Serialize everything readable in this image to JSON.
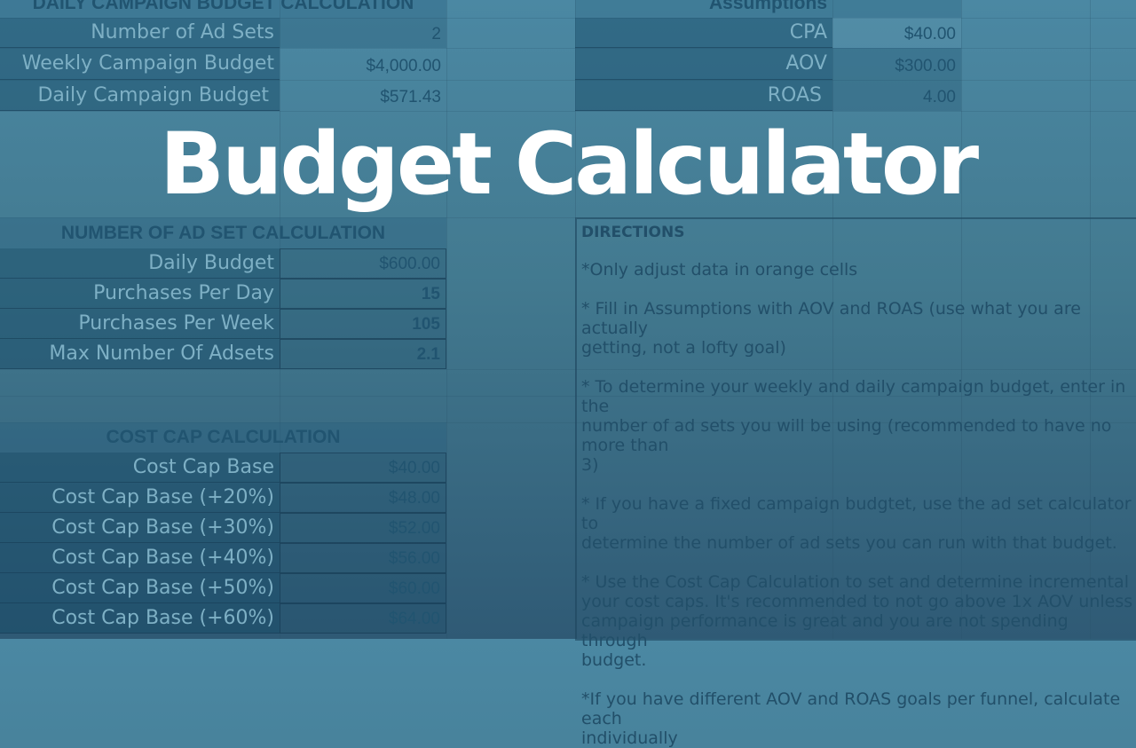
{
  "title_overlay": {
    "line1": "Budget",
    "line2": "Calculator"
  },
  "daily_campaign": {
    "header": "DAILY CAMPAIGN BUDGET CALCULATION",
    "rows": [
      {
        "label": "Number of Ad Sets",
        "value": "2"
      },
      {
        "label": "Weekly Campaign Budget",
        "value": "$4,000.00"
      },
      {
        "label": "Daily Campaign Budget",
        "value": "$571.43"
      }
    ]
  },
  "assumptions": {
    "header": "Assumptions",
    "rows": [
      {
        "label": "CPA",
        "value": "$40.00"
      },
      {
        "label": "AOV",
        "value": "$300.00"
      },
      {
        "label": "ROAS",
        "value": "4.00"
      }
    ]
  },
  "ad_set_calc": {
    "header": "NUMBER OF AD SET CALCULATION",
    "rows": [
      {
        "label": "Daily Budget",
        "value": "$600.00"
      },
      {
        "label": "Purchases Per Day",
        "value": "15"
      },
      {
        "label": "Purchases Per Week",
        "value": "105"
      },
      {
        "label": "Max Number Of Adsets",
        "value": "2.1"
      }
    ]
  },
  "cost_cap": {
    "header": "COST CAP CALCULATION",
    "rows": [
      {
        "label": "Cost Cap Base",
        "value": "$40.00"
      },
      {
        "label": "Cost Cap Base (+20%)",
        "value": "$48.00"
      },
      {
        "label": "Cost Cap Base (+30%)",
        "value": "$52.00"
      },
      {
        "label": "Cost Cap Base (+40%)",
        "value": "$56.00"
      },
      {
        "label": "Cost Cap Base (+50%)",
        "value": "$60.00"
      },
      {
        "label": "Cost Cap Base (+60%)",
        "value": "$64.00"
      }
    ]
  },
  "directions": {
    "title": "DIRECTIONS",
    "items": [
      "*Only adjust data in orange cells",
      "* Fill in Assumptions with AOV and ROAS (use what you are actually\ngetting, not a lofty goal)",
      "* To determine your weekly and daily campaign budget, enter in the\nnumber of ad sets you will be using (recommended to have no more than\n3)",
      "* If you have a fixed campaign budgtet, use the ad set calculator to\ndetermine the number of ad sets you can run with that budget.",
      "* Use the Cost Cap Calculation to set and determine incremental\nyour cost caps. It's recommended to not go above 1x AOV unless\ncampaign performance is great and you are not spending through\nbudget.",
      "*If you have different AOV and ROAS goals per funnel, calculate each\nindividually"
    ]
  }
}
